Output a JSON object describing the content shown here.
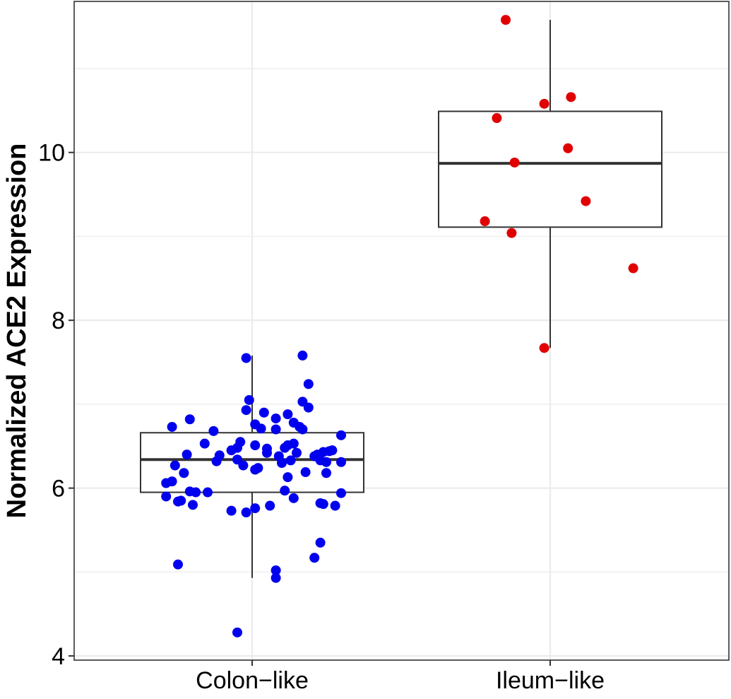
{
  "chart_data": {
    "type": "box",
    "title": "",
    "xlabel": "",
    "ylabel": "Normalized ACE2 Expression",
    "ylim": [
      3.95,
      11.8
    ],
    "yticks": [
      4,
      6,
      8,
      10
    ],
    "grid": true,
    "categories": [
      "Colon−like",
      "Ileum−like"
    ],
    "colors": {
      "Colon-like": "#0000ee",
      "Ileum-like": "#e00000",
      "box": "#333333",
      "grid": "#ebebeb"
    },
    "boxes": [
      {
        "category": "Colon−like",
        "whisker_low": 4.93,
        "q1": 5.95,
        "median": 6.34,
        "q3": 6.66,
        "whisker_high": 7.58
      },
      {
        "category": "Ileum−like",
        "whisker_low": 7.67,
        "q1": 9.11,
        "median": 9.87,
        "q3": 10.49,
        "whisker_high": 11.58
      }
    ],
    "points": [
      {
        "group": 0,
        "jitter": -0.27,
        "y": 6.73
      },
      {
        "group": 0,
        "jitter": -0.21,
        "y": 6.82
      },
      {
        "group": 0,
        "jitter": -0.26,
        "y": 6.27
      },
      {
        "group": 0,
        "jitter": -0.16,
        "y": 6.53
      },
      {
        "group": 0,
        "jitter": -0.22,
        "y": 6.4
      },
      {
        "group": 0,
        "jitter": -0.23,
        "y": 6.18
      },
      {
        "group": 0,
        "jitter": -0.29,
        "y": 6.06
      },
      {
        "group": 0,
        "jitter": -0.27,
        "y": 6.08
      },
      {
        "group": 0,
        "jitter": -0.21,
        "y": 5.96
      },
      {
        "group": 0,
        "jitter": -0.19,
        "y": 5.95
      },
      {
        "group": 0,
        "jitter": -0.15,
        "y": 5.95
      },
      {
        "group": 0,
        "jitter": -0.29,
        "y": 5.9
      },
      {
        "group": 0,
        "jitter": -0.24,
        "y": 5.85
      },
      {
        "group": 0,
        "jitter": -0.25,
        "y": 5.84
      },
      {
        "group": 0,
        "jitter": -0.2,
        "y": 5.8
      },
      {
        "group": 0,
        "jitter": -0.25,
        "y": 5.09
      },
      {
        "group": 0,
        "jitter": -0.13,
        "y": 6.68
      },
      {
        "group": 0,
        "jitter": -0.12,
        "y": 6.32
      },
      {
        "group": 0,
        "jitter": -0.11,
        "y": 6.39
      },
      {
        "group": 0,
        "jitter": -0.05,
        "y": 6.34
      },
      {
        "group": 0,
        "jitter": -0.07,
        "y": 6.45
      },
      {
        "group": 0,
        "jitter": -0.05,
        "y": 6.48
      },
      {
        "group": 0,
        "jitter": -0.04,
        "y": 6.55
      },
      {
        "group": 0,
        "jitter": -0.03,
        "y": 6.27
      },
      {
        "group": 0,
        "jitter": -0.02,
        "y": 6.93
      },
      {
        "group": 0,
        "jitter": -0.02,
        "y": 7.55
      },
      {
        "group": 0,
        "jitter": -0.01,
        "y": 7.05
      },
      {
        "group": 0,
        "jitter": -0.07,
        "y": 5.73
      },
      {
        "group": 0,
        "jitter": -0.02,
        "y": 5.71
      },
      {
        "group": 0,
        "jitter": 0.01,
        "y": 6.51
      },
      {
        "group": 0,
        "jitter": 0.01,
        "y": 6.76
      },
      {
        "group": 0,
        "jitter": 0.01,
        "y": 5.76
      },
      {
        "group": 0,
        "jitter": 0.01,
        "y": 6.22
      },
      {
        "group": 0,
        "jitter": 0.02,
        "y": 6.24
      },
      {
        "group": 0,
        "jitter": 0.03,
        "y": 6.71
      },
      {
        "group": 0,
        "jitter": 0.05,
        "y": 6.47
      },
      {
        "group": 0,
        "jitter": 0.04,
        "y": 6.9
      },
      {
        "group": 0,
        "jitter": 0.05,
        "y": 6.42
      },
      {
        "group": 0,
        "jitter": 0.06,
        "y": 5.79
      },
      {
        "group": 0,
        "jitter": -0.05,
        "y": 4.28
      },
      {
        "group": 0,
        "jitter": 0.08,
        "y": 6.83
      },
      {
        "group": 0,
        "jitter": 0.08,
        "y": 6.7
      },
      {
        "group": 0,
        "jitter": 0.08,
        "y": 5.02
      },
      {
        "group": 0,
        "jitter": 0.08,
        "y": 4.93
      },
      {
        "group": 0,
        "jitter": 0.09,
        "y": 6.38
      },
      {
        "group": 0,
        "jitter": 0.1,
        "y": 6.3
      },
      {
        "group": 0,
        "jitter": 0.11,
        "y": 6.48
      },
      {
        "group": 0,
        "jitter": 0.11,
        "y": 5.97
      },
      {
        "group": 0,
        "jitter": 0.12,
        "y": 6.88
      },
      {
        "group": 0,
        "jitter": 0.12,
        "y": 6.51
      },
      {
        "group": 0,
        "jitter": 0.13,
        "y": 6.33
      },
      {
        "group": 0,
        "jitter": 0.12,
        "y": 6.13
      },
      {
        "group": 0,
        "jitter": 0.14,
        "y": 6.78
      },
      {
        "group": 0,
        "jitter": 0.14,
        "y": 6.53
      },
      {
        "group": 0,
        "jitter": 0.14,
        "y": 5.88
      },
      {
        "group": 0,
        "jitter": 0.15,
        "y": 6.42
      },
      {
        "group": 0,
        "jitter": 0.16,
        "y": 6.73
      },
      {
        "group": 0,
        "jitter": 0.17,
        "y": 6.7
      },
      {
        "group": 0,
        "jitter": 0.17,
        "y": 7.03
      },
      {
        "group": 0,
        "jitter": 0.17,
        "y": 7.58
      },
      {
        "group": 0,
        "jitter": 0.18,
        "y": 6.19
      },
      {
        "group": 0,
        "jitter": 0.19,
        "y": 6.96
      },
      {
        "group": 0,
        "jitter": 0.19,
        "y": 7.24
      },
      {
        "group": 0,
        "jitter": 0.21,
        "y": 6.38
      },
      {
        "group": 0,
        "jitter": 0.22,
        "y": 6.4
      },
      {
        "group": 0,
        "jitter": 0.23,
        "y": 6.33
      },
      {
        "group": 0,
        "jitter": 0.23,
        "y": 5.82
      },
      {
        "group": 0,
        "jitter": 0.23,
        "y": 5.35
      },
      {
        "group": 0,
        "jitter": 0.21,
        "y": 5.17
      },
      {
        "group": 0,
        "jitter": 0.24,
        "y": 6.43
      },
      {
        "group": 0,
        "jitter": 0.24,
        "y": 5.81
      },
      {
        "group": 0,
        "jitter": 0.25,
        "y": 6.31
      },
      {
        "group": 0,
        "jitter": 0.25,
        "y": 6.18
      },
      {
        "group": 0,
        "jitter": 0.26,
        "y": 6.44
      },
      {
        "group": 0,
        "jitter": 0.27,
        "y": 6.45
      },
      {
        "group": 0,
        "jitter": 0.28,
        "y": 5.79
      },
      {
        "group": 0,
        "jitter": 0.3,
        "y": 6.63
      },
      {
        "group": 0,
        "jitter": 0.3,
        "y": 6.31
      },
      {
        "group": 0,
        "jitter": 0.3,
        "y": 5.94
      },
      {
        "group": 1,
        "jitter": -0.15,
        "y": 11.58
      },
      {
        "group": 1,
        "jitter": -0.18,
        "y": 10.41
      },
      {
        "group": 1,
        "jitter": -0.12,
        "y": 9.88
      },
      {
        "group": 1,
        "jitter": -0.22,
        "y": 9.18
      },
      {
        "group": 1,
        "jitter": -0.13,
        "y": 9.04
      },
      {
        "group": 1,
        "jitter": -0.02,
        "y": 10.58
      },
      {
        "group": 1,
        "jitter": 0.07,
        "y": 10.66
      },
      {
        "group": 1,
        "jitter": 0.06,
        "y": 10.05
      },
      {
        "group": 1,
        "jitter": 0.12,
        "y": 9.42
      },
      {
        "group": 1,
        "jitter": 0.28,
        "y": 8.62
      },
      {
        "group": 1,
        "jitter": -0.02,
        "y": 7.67
      }
    ]
  }
}
